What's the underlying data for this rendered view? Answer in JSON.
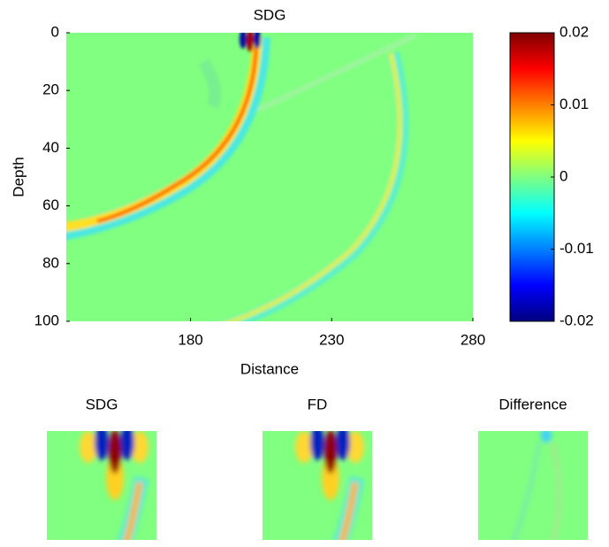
{
  "chart_data": [
    {
      "type": "heatmap",
      "title": "SDG",
      "x_label": "Distance",
      "y_label": "Depth",
      "xlim": [
        136,
        280
      ],
      "xticks": [
        180,
        230,
        280
      ],
      "ylim": [
        0,
        100
      ],
      "yticks": [
        0,
        20,
        40,
        60,
        80,
        100
      ],
      "y_reversed": true,
      "colormap": "jet",
      "clim": [
        -0.02,
        0.02
      ],
      "colorbar_ticks": [
        -0.02,
        -0.01,
        0,
        0.01,
        0.02
      ]
    },
    {
      "type": "heatmap",
      "title": "SDG",
      "colormap": "jet"
    },
    {
      "type": "heatmap",
      "title": "FD",
      "colormap": "jet"
    },
    {
      "type": "heatmap",
      "title": "Difference",
      "colormap": "jet"
    }
  ]
}
